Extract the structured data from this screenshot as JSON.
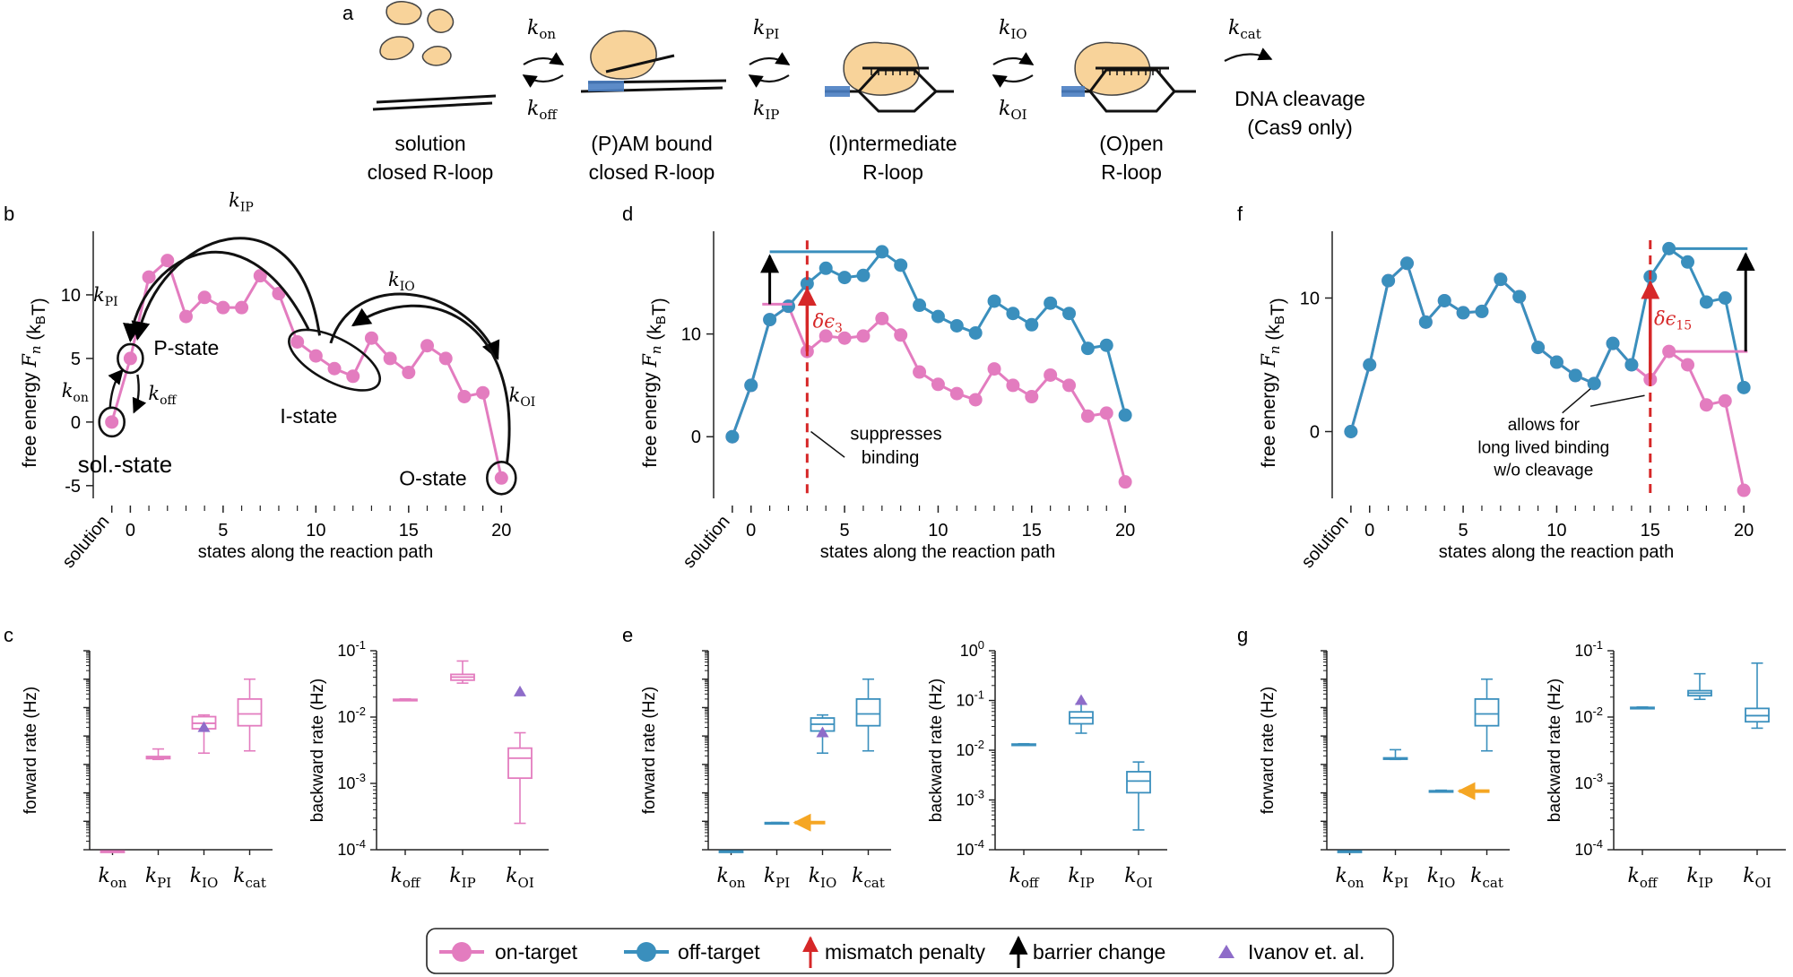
{
  "colors": {
    "on_target": "#e37cbf",
    "off_target": "#3a8fbd",
    "mismatch": "#d62728",
    "barrier": "#000000",
    "ivanov": "#8e6cc9",
    "orange": "#f5a623",
    "protein": "#f8d39a"
  },
  "panel_a": {
    "letter": "a",
    "states": [
      {
        "line1": "solution",
        "line2": "closed R-loop"
      },
      {
        "line1": "(P)AM bound",
        "line2": "closed R-loop"
      },
      {
        "line1": "(I)ntermediate",
        "line2": "R-loop"
      },
      {
        "line1": "(O)pen",
        "line2": "R-loop"
      }
    ],
    "rates": [
      {
        "fwd": "k",
        "fwd_sub": "on",
        "bwd": "k",
        "bwd_sub": "off"
      },
      {
        "fwd": "k",
        "fwd_sub": "PI",
        "bwd": "k",
        "bwd_sub": "IP"
      },
      {
        "fwd": "k",
        "fwd_sub": "IO",
        "bwd": "k",
        "bwd_sub": "OI"
      }
    ],
    "cat_rate": {
      "k": "k",
      "sub": "cat"
    },
    "cleavage_line1": "DNA cleavage",
    "cleavage_line2": "(Cas9 only)"
  },
  "energy_axes": {
    "xlabel": "states along the reaction path",
    "ylabel": "free energy",
    "ylabel_math": "F",
    "ylabel_sub": "n",
    "ylabel_unit": "(k",
    "ylabel_unit_sub": "B",
    "ylabel_unit_end": "T)",
    "solution_tick": "solution"
  },
  "panel_b": {
    "letter": "b",
    "labels": {
      "p_state": "P-state",
      "i_state": "I-state",
      "o_state": "O-state",
      "sol_state": "sol.-state"
    },
    "rates": {
      "ip": "IP",
      "pi": "PI",
      "io": "IO",
      "oi": "OI",
      "on": "on",
      "off": "off"
    }
  },
  "panel_d": {
    "letter": "d",
    "annotation_line1": "suppresses",
    "annotation_line2": "binding",
    "delta": "δϵ",
    "delta_sub": "3"
  },
  "panel_f": {
    "letter": "f",
    "annotation_line1": "allows for",
    "annotation_line2": "long lived binding",
    "annotation_line3": "w/o cleavage",
    "delta": "δϵ",
    "delta_sub": "15"
  },
  "rate_axes": {
    "forward_label": "forward rate (Hz)",
    "backward_label": "backward rate (Hz)"
  },
  "panel_letters": {
    "c": "c",
    "e": "e",
    "g": "g"
  },
  "legend": {
    "on_target": "on-target",
    "off_target": "off-target",
    "mismatch": "mismatch penalty",
    "barrier": "barrier change",
    "ivanov": "Ivanov et. al."
  },
  "chart_data": [
    {
      "type": "line",
      "panel": "b",
      "xlabel": "states along the reaction path",
      "ylabel": "free energy Fn (kBT)",
      "x": [
        -1,
        0,
        1,
        2,
        3,
        4,
        5,
        6,
        7,
        8,
        9,
        10,
        11,
        12,
        13,
        14,
        15,
        16,
        17,
        18,
        19,
        20
      ],
      "x_tick_labels": [
        "solution",
        "0",
        "5",
        "10",
        "15",
        "20"
      ],
      "xlim": [
        -2,
        21
      ],
      "ylim": [
        -6,
        15
      ],
      "yticks": [
        -5,
        0,
        5,
        10
      ],
      "series": [
        {
          "name": "on-target",
          "values": [
            0,
            5,
            11.4,
            12.7,
            8.3,
            9.8,
            9.0,
            9.0,
            11.5,
            10.1,
            6.3,
            5.2,
            4.2,
            3.6,
            6.6,
            5.0,
            3.9,
            6.0,
            5.0,
            2.0,
            2.3,
            -4.4
          ]
        }
      ]
    },
    {
      "type": "line",
      "panel": "d",
      "xlabel": "states along the reaction path",
      "ylabel": "free energy Fn (kBT)",
      "x": [
        -1,
        0,
        1,
        2,
        3,
        4,
        5,
        6,
        7,
        8,
        9,
        10,
        11,
        12,
        13,
        14,
        15,
        16,
        17,
        18,
        19,
        20
      ],
      "x_tick_labels": [
        "solution",
        "0",
        "5",
        "10",
        "15",
        "20"
      ],
      "xlim": [
        -2,
        21
      ],
      "ylim": [
        -6,
        20
      ],
      "yticks": [
        0,
        10
      ],
      "series": [
        {
          "name": "on-target",
          "values": [
            0,
            5,
            11.4,
            12.7,
            8.3,
            9.8,
            9.6,
            9.8,
            11.5,
            9.9,
            6.3,
            5.1,
            4.2,
            3.6,
            6.6,
            5.0,
            3.9,
            6.0,
            5.0,
            2.0,
            2.3,
            -4.4
          ]
        },
        {
          "name": "off-target",
          "values": [
            0,
            5,
            11.4,
            12.7,
            14.9,
            16.4,
            15.5,
            15.7,
            18.0,
            16.7,
            12.8,
            11.7,
            10.8,
            10.1,
            13.2,
            12.0,
            10.9,
            13.0,
            12.0,
            8.6,
            8.9,
            2.1
          ]
        }
      ],
      "annotations": [
        "suppresses binding",
        "δϵ3"
      ]
    },
    {
      "type": "line",
      "panel": "f",
      "xlabel": "states along the reaction path",
      "ylabel": "free energy Fn (kBT)",
      "x": [
        -1,
        0,
        1,
        2,
        3,
        4,
        5,
        6,
        7,
        8,
        9,
        10,
        11,
        12,
        13,
        14,
        15,
        16,
        17,
        18,
        19,
        20
      ],
      "x_tick_labels": [
        "solution",
        "0",
        "5",
        "10",
        "15",
        "20"
      ],
      "xlim": [
        -2,
        21
      ],
      "ylim": [
        -5,
        15
      ],
      "yticks": [
        0,
        10
      ],
      "series": [
        {
          "name": "on-target",
          "values": [
            0,
            5,
            11.3,
            12.6,
            8.2,
            9.8,
            8.9,
            9.0,
            11.4,
            10.1,
            6.3,
            5.2,
            4.2,
            3.6,
            6.6,
            5.0,
            3.9,
            6.0,
            5.0,
            2.0,
            2.3,
            -4.4
          ]
        },
        {
          "name": "off-target",
          "values": [
            0,
            5,
            11.3,
            12.6,
            8.2,
            9.8,
            8.9,
            9.0,
            11.4,
            10.1,
            6.3,
            5.2,
            4.2,
            3.6,
            6.6,
            5.0,
            11.6,
            13.7,
            12.7,
            9.7,
            10.0,
            3.3
          ]
        }
      ],
      "annotations": [
        "allows for long lived binding w/o cleavage",
        "δϵ15"
      ]
    },
    {
      "type": "box",
      "panel": "c-forward",
      "ylabel": "forward rate (Hz)",
      "yscale": "log",
      "ylim": [
        0.0001,
        1000
      ],
      "categories": [
        "kon",
        "kPI",
        "kIO",
        "kcat"
      ],
      "boxes": [
        [
          9e-05,
          9e-05,
          9e-05,
          9e-05,
          9e-05
        ],
        [
          0.15,
          0.16,
          0.17,
          0.19,
          0.35
        ],
        [
          0.25,
          1.8,
          2.8,
          4.8,
          5.5
        ],
        [
          0.3,
          2.3,
          6.0,
          20,
          100
        ]
      ],
      "ivanov": {
        "category": "kIO",
        "value": 2.0
      }
    },
    {
      "type": "box",
      "panel": "c-backward",
      "ylabel": "backward rate (Hz)",
      "yscale": "log",
      "ylim": [
        0.0001,
        0.1
      ],
      "categories": [
        "koff",
        "kIP",
        "kOI"
      ],
      "boxes": [
        [
          0.0178,
          0.0181,
          0.0183,
          0.0185,
          0.0188
        ],
        [
          0.0325,
          0.036,
          0.04,
          0.044,
          0.07
        ],
        [
          0.00025,
          0.0012,
          0.0024,
          0.0034,
          0.0058
        ]
      ],
      "ivanov": {
        "category": "kOI",
        "value": 0.024
      }
    },
    {
      "type": "box",
      "panel": "e-forward",
      "ylabel": "forward rate (Hz)",
      "yscale": "log",
      "ylim": [
        0.0001,
        1000
      ],
      "categories": [
        "kon",
        "kPI",
        "kIO",
        "kcat"
      ],
      "boxes": [
        [
          9e-05,
          9e-05,
          9e-05,
          9e-05,
          9e-05
        ],
        [
          0.00087,
          0.00088,
          0.00089,
          0.0009,
          0.00091
        ],
        [
          0.25,
          1.5,
          2.6,
          4.3,
          5.5
        ],
        [
          0.3,
          2.3,
          6.0,
          20,
          100
        ]
      ],
      "ivanov": {
        "category": "kIO",
        "value": 1.3
      }
    },
    {
      "type": "box",
      "panel": "e-backward",
      "ylabel": "backward rate (Hz)",
      "yscale": "log",
      "ylim": [
        0.0001,
        1
      ],
      "categories": [
        "koff",
        "kIP",
        "kOI"
      ],
      "boxes": [
        [
          0.0128,
          0.013,
          0.0131,
          0.0133,
          0.0135
        ],
        [
          0.022,
          0.034,
          0.045,
          0.059,
          0.085
        ],
        [
          0.00025,
          0.0014,
          0.0024,
          0.0037,
          0.0058
        ]
      ],
      "ivanov": {
        "category": "kIP",
        "value": 0.1
      }
    },
    {
      "type": "box",
      "panel": "g-forward",
      "ylabel": "forward rate (Hz)",
      "yscale": "log",
      "ylim": [
        0.0001,
        1000
      ],
      "categories": [
        "kon",
        "kPI",
        "kIO",
        "kcat"
      ],
      "boxes": [
        [
          9e-05,
          9e-05,
          9e-05,
          9e-05,
          9e-05
        ],
        [
          0.15,
          0.155,
          0.16,
          0.17,
          0.33
        ],
        [
          0.0108,
          0.0113,
          0.0115,
          0.0119,
          0.0124
        ],
        [
          0.3,
          2.3,
          6.0,
          20,
          100
        ]
      ]
    },
    {
      "type": "box",
      "panel": "g-backward",
      "ylabel": "backward rate (Hz)",
      "yscale": "log",
      "ylim": [
        0.0001,
        0.1
      ],
      "categories": [
        "koff",
        "kIP",
        "kOI"
      ],
      "boxes": [
        [
          0.0134,
          0.0136,
          0.0138,
          0.014,
          0.0142
        ],
        [
          0.0185,
          0.021,
          0.023,
          0.025,
          0.045
        ],
        [
          0.0068,
          0.0085,
          0.0105,
          0.0135,
          0.065
        ]
      ]
    }
  ]
}
